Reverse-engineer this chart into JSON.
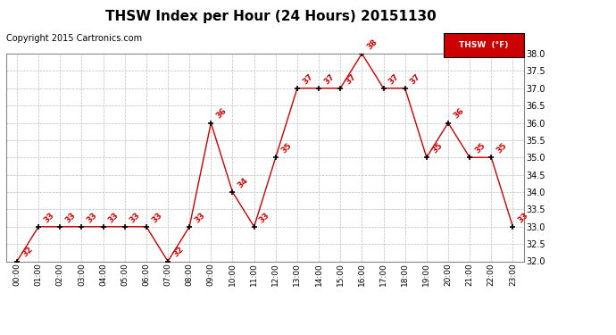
{
  "title": "THSW Index per Hour (24 Hours) 20151130",
  "copyright": "Copyright 2015 Cartronics.com",
  "legend_label": "THSW  (°F)",
  "hours": [
    0,
    1,
    2,
    3,
    4,
    5,
    6,
    7,
    8,
    9,
    10,
    11,
    12,
    13,
    14,
    15,
    16,
    17,
    18,
    19,
    20,
    21,
    22,
    23
  ],
  "hour_labels": [
    "00:00",
    "01:00",
    "02:00",
    "03:00",
    "04:00",
    "05:00",
    "06:00",
    "07:00",
    "08:00",
    "09:00",
    "10:00",
    "11:00",
    "12:00",
    "13:00",
    "14:00",
    "15:00",
    "16:00",
    "17:00",
    "18:00",
    "19:00",
    "20:00",
    "21:00",
    "22:00",
    "23:00"
  ],
  "values": [
    32,
    33,
    33,
    33,
    33,
    33,
    33,
    32,
    33,
    36,
    34,
    33,
    35,
    37,
    37,
    37,
    38,
    37,
    37,
    35,
    36,
    35,
    35,
    33
  ],
  "ylim": [
    32.0,
    38.0
  ],
  "yticks": [
    32.0,
    32.5,
    33.0,
    33.5,
    34.0,
    34.5,
    35.0,
    35.5,
    36.0,
    36.5,
    37.0,
    37.5,
    38.0
  ],
  "line_color": "#cc0000",
  "marker_color": "#000000",
  "label_color": "#cc0000",
  "bg_color": "#ffffff",
  "grid_color": "#bbbbbb",
  "title_fontsize": 11,
  "copyright_fontsize": 7,
  "label_fontsize": 6.5,
  "legend_bg": "#cc0000",
  "legend_text_color": "#ffffff"
}
